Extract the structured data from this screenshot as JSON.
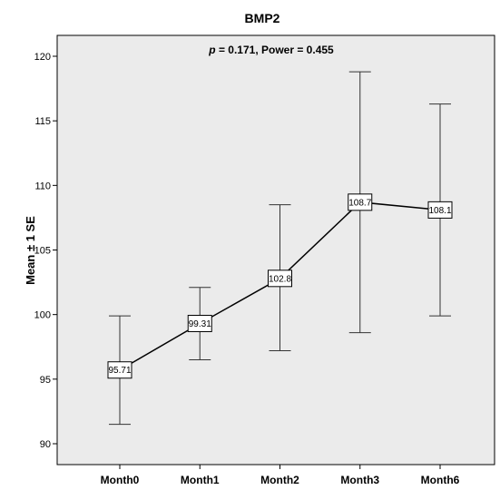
{
  "chart_data": {
    "type": "line",
    "title": "BMP2",
    "annotation_stat": "p",
    "annotation_rest": " = 0.171, Power = 0.455",
    "xlabel": "",
    "ylabel": "Mean ± 1 SE",
    "categories": [
      "Month0",
      "Month1",
      "Month2",
      "Month3",
      "Month6"
    ],
    "series": [
      {
        "values": [
          95.71,
          99.31,
          102.8,
          108.7,
          108.1
        ],
        "value_labels": [
          "95.71",
          "99.31",
          "102.8",
          "108.7",
          "108.1"
        ],
        "se_upper": [
          99.9,
          102.1,
          108.5,
          118.8,
          116.3
        ],
        "se_lower": [
          91.5,
          96.5,
          97.2,
          98.6,
          99.9
        ]
      }
    ],
    "ylim": [
      88.5,
      121.5
    ],
    "yticks": [
      90,
      95,
      100,
      105,
      110,
      115,
      120
    ],
    "grid": false,
    "legend": "none",
    "colors": {
      "plot_background": "#ebebeb",
      "line": "#000000",
      "marker_fill": "#ffffff"
    }
  }
}
